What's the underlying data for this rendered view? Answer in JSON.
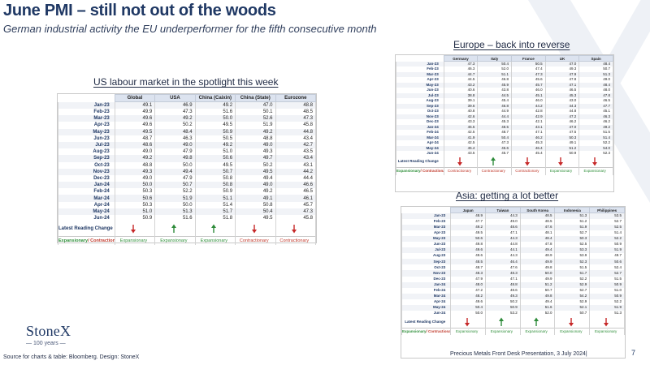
{
  "title": "June PMI – still not out of the woods",
  "subtitle": "German industrial activity the EU underperformer for the fifth consecutive month",
  "us_section": {
    "heading": "US labour market in the spotlight this week",
    "columns": [
      "Global",
      "USA",
      "China (Caixin)",
      "China (State)",
      "Eurozone"
    ],
    "rows": [
      {
        "label": "Jan-23",
        "values": [
          "49.1",
          "46.9",
          "49.2",
          "47.0",
          "48.8"
        ]
      },
      {
        "label": "Feb-23",
        "values": [
          "49.9",
          "47.3",
          "51.6",
          "50.1",
          "48.5"
        ]
      },
      {
        "label": "Mar-23",
        "values": [
          "49.6",
          "49.2",
          "50.0",
          "52.6",
          "47.3"
        ]
      },
      {
        "label": "Apr-23",
        "values": [
          "49.6",
          "50.2",
          "49.5",
          "51.9",
          "45.8"
        ]
      },
      {
        "label": "May-23",
        "values": [
          "49.5",
          "48.4",
          "50.9",
          "49.2",
          "44.8"
        ]
      },
      {
        "label": "Jun-23",
        "values": [
          "48.7",
          "46.3",
          "50.5",
          "48.8",
          "43.4"
        ]
      },
      {
        "label": "Jul-23",
        "values": [
          "48.6",
          "49.0",
          "49.2",
          "49.0",
          "42.7"
        ]
      },
      {
        "label": "Aug-23",
        "values": [
          "49.0",
          "47.9",
          "51.0",
          "49.3",
          "43.5"
        ]
      },
      {
        "label": "Sep-23",
        "values": [
          "49.2",
          "49.8",
          "50.6",
          "49.7",
          "43.4"
        ]
      },
      {
        "label": "Oct-23",
        "values": [
          "48.8",
          "50.0",
          "49.5",
          "50.2",
          "43.1"
        ]
      },
      {
        "label": "Nov-23",
        "values": [
          "49.3",
          "49.4",
          "50.7",
          "49.5",
          "44.2"
        ]
      },
      {
        "label": "Dec-23",
        "values": [
          "49.0",
          "47.9",
          "50.8",
          "49.4",
          "44.4"
        ]
      },
      {
        "label": "Jan-24",
        "values": [
          "50.0",
          "50.7",
          "50.8",
          "49.0",
          "46.6"
        ]
      },
      {
        "label": "Feb-24",
        "values": [
          "50.3",
          "52.2",
          "50.9",
          "49.2",
          "46.5"
        ]
      },
      {
        "label": "Mar-24",
        "values": [
          "50.6",
          "51.9",
          "51.1",
          "49.1",
          "46.1"
        ]
      },
      {
        "label": "Apr-24",
        "values": [
          "50.3",
          "50.0",
          "51.4",
          "50.8",
          "45.7"
        ]
      },
      {
        "label": "May-24",
        "values": [
          "51.0",
          "51.3",
          "51.7",
          "50.4",
          "47.3"
        ]
      },
      {
        "label": "Jun-24",
        "values": [
          "50.9",
          "51.6",
          "51.8",
          "49.5",
          "45.8"
        ]
      }
    ],
    "change_label": "Latest Reading Change",
    "changes": [
      "down",
      "up",
      "up",
      "down",
      "down"
    ],
    "exp_label_a": "Expansionary",
    "exp_label_b": "/ Contractionary",
    "statuses": [
      "Expansionary",
      "Expansionary",
      "Expansionary",
      "Contractionary",
      "Contractionary"
    ]
  },
  "europe_section": {
    "heading": "Europe – back into reverse",
    "columns": [
      "Germany",
      "Italy",
      "France",
      "UK",
      "Spain"
    ],
    "rows": [
      {
        "label": "Jan-23",
        "values": [
          "47.3",
          "50.4",
          "50.5",
          "47.0",
          "48.4"
        ]
      },
      {
        "label": "Feb-23",
        "values": [
          "46.3",
          "52.0",
          "47.4",
          "49.3",
          "50.7"
        ]
      },
      {
        "label": "Mar-23",
        "values": [
          "44.7",
          "51.1",
          "47.3",
          "47.9",
          "51.3"
        ]
      },
      {
        "label": "Apr-23",
        "values": [
          "44.5",
          "46.8",
          "45.6",
          "47.8",
          "49.0"
        ]
      },
      {
        "label": "May-23",
        "values": [
          "43.2",
          "45.9",
          "45.7",
          "47.1",
          "48.4"
        ]
      },
      {
        "label": "Jun-23",
        "values": [
          "40.6",
          "43.8",
          "46.0",
          "46.5",
          "48.0"
        ]
      },
      {
        "label": "Jul-23",
        "values": [
          "38.8",
          "44.5",
          "45.1",
          "45.3",
          "47.8"
        ]
      },
      {
        "label": "Aug-23",
        "values": [
          "39.1",
          "45.4",
          "46.0",
          "43.0",
          "46.5"
        ]
      },
      {
        "label": "Sep-23",
        "values": [
          "39.6",
          "46.8",
          "44.2",
          "44.3",
          "47.7"
        ]
      },
      {
        "label": "Oct-23",
        "values": [
          "40.8",
          "44.9",
          "42.8",
          "44.8",
          "45.1"
        ]
      },
      {
        "label": "Nov-23",
        "values": [
          "42.6",
          "44.4",
          "42.9",
          "47.2",
          "46.3"
        ]
      },
      {
        "label": "Dec-23",
        "values": [
          "43.3",
          "45.3",
          "42.1",
          "46.2",
          "46.2"
        ]
      },
      {
        "label": "Jan-24",
        "values": [
          "45.5",
          "48.5",
          "43.1",
          "47.0",
          "49.2"
        ]
      },
      {
        "label": "Feb-24",
        "values": [
          "42.5",
          "48.7",
          "47.1",
          "47.5",
          "51.5"
        ]
      },
      {
        "label": "Mar-24",
        "values": [
          "41.9",
          "50.4",
          "46.2",
          "50.3",
          "51.4"
        ]
      },
      {
        "label": "Apr-24",
        "values": [
          "42.5",
          "47.3",
          "45.3",
          "49.1",
          "52.2"
        ]
      },
      {
        "label": "May-24",
        "values": [
          "45.4",
          "45.6",
          "46.4",
          "51.2",
          "54.0"
        ]
      },
      {
        "label": "Jun-24",
        "values": [
          "43.5",
          "45.7",
          "45.4",
          "50.9",
          "52.3"
        ]
      }
    ],
    "change_label": "Latest Reading Change",
    "changes": [
      "down",
      "up",
      "down",
      "down",
      "down"
    ],
    "exp_label_a": "Expansionary",
    "exp_label_b": "/ Contractionary",
    "statuses": [
      "Contractionary",
      "Contractionary",
      "Contractionary",
      "Expansionary",
      "Expansionary"
    ]
  },
  "asia_section": {
    "heading": "Asia: getting a lot better",
    "columns": [
      "Japan",
      "Taiwan",
      "South Korea",
      "Indonesia",
      "Philippines"
    ],
    "rows": [
      {
        "label": "Jan-23",
        "values": [
          "48.9",
          "44.3",
          "48.5",
          "51.3",
          "53.5"
        ]
      },
      {
        "label": "Feb-23",
        "values": [
          "47.7",
          "49.0",
          "48.5",
          "51.2",
          "52.7"
        ]
      },
      {
        "label": "Mar-23",
        "values": [
          "49.2",
          "48.6",
          "47.6",
          "51.9",
          "52.5"
        ]
      },
      {
        "label": "Apr-23",
        "values": [
          "49.5",
          "47.1",
          "48.1",
          "52.7",
          "51.4"
        ]
      },
      {
        "label": "May-23",
        "values": [
          "50.6",
          "44.3",
          "48.4",
          "50.3",
          "52.2"
        ]
      },
      {
        "label": "Jun-23",
        "values": [
          "49.8",
          "44.8",
          "47.8",
          "52.5",
          "50.9"
        ]
      },
      {
        "label": "Jul-23",
        "values": [
          "49.6",
          "44.1",
          "49.4",
          "53.3",
          "51.9"
        ]
      },
      {
        "label": "Aug-23",
        "values": [
          "49.6",
          "44.3",
          "48.9",
          "53.9",
          "49.7"
        ]
      },
      {
        "label": "Sep-23",
        "values": [
          "48.5",
          "46.4",
          "49.9",
          "52.3",
          "50.6"
        ]
      },
      {
        "label": "Oct-23",
        "values": [
          "48.7",
          "47.6",
          "49.8",
          "51.5",
          "52.4"
        ]
      },
      {
        "label": "Nov-23",
        "values": [
          "48.3",
          "48.3",
          "50.0",
          "51.7",
          "52.7"
        ]
      },
      {
        "label": "Dec-23",
        "values": [
          "47.9",
          "47.1",
          "49.9",
          "52.2",
          "51.5"
        ]
      },
      {
        "label": "Jan-24",
        "values": [
          "48.0",
          "48.8",
          "51.2",
          "52.9",
          "50.9"
        ]
      },
      {
        "label": "Feb-24",
        "values": [
          "47.2",
          "48.6",
          "50.7",
          "52.7",
          "51.0"
        ]
      },
      {
        "label": "Mar-24",
        "values": [
          "48.2",
          "49.3",
          "49.8",
          "54.2",
          "50.9"
        ]
      },
      {
        "label": "Apr-24",
        "values": [
          "49.6",
          "50.2",
          "49.4",
          "52.9",
          "52.2"
        ]
      },
      {
        "label": "May-24",
        "values": [
          "50.4",
          "50.9",
          "51.6",
          "52.1",
          "51.9"
        ]
      },
      {
        "label": "Jun-24",
        "values": [
          "50.0",
          "53.2",
          "52.0",
          "50.7",
          "51.3"
        ]
      }
    ],
    "change_label": "Latest Reading Change",
    "changes": [
      "down",
      "up",
      "up",
      "down",
      "down"
    ],
    "exp_label_a": "Expansionary",
    "exp_label_b": "/ Contractionary",
    "statuses": [
      "Expansionary",
      "Expansionary",
      "Expansionary",
      "Expansionary",
      "Expansionary"
    ]
  },
  "colors": {
    "expansionary": "#2f8f3a",
    "contractionary": "#c0392b",
    "up_arrow": "#2e8b3a",
    "down_arrow": "#c62828",
    "header_fill": "#dce3ef",
    "brand": "#1f3864"
  },
  "logo": {
    "name": "StoneX",
    "years": "100 years"
  },
  "source": "Source for charts & table: Bloomberg. Design: StoneX",
  "footer": "Precious Metals Front Desk Presentation, 3 July 2024|",
  "page_number": "7"
}
